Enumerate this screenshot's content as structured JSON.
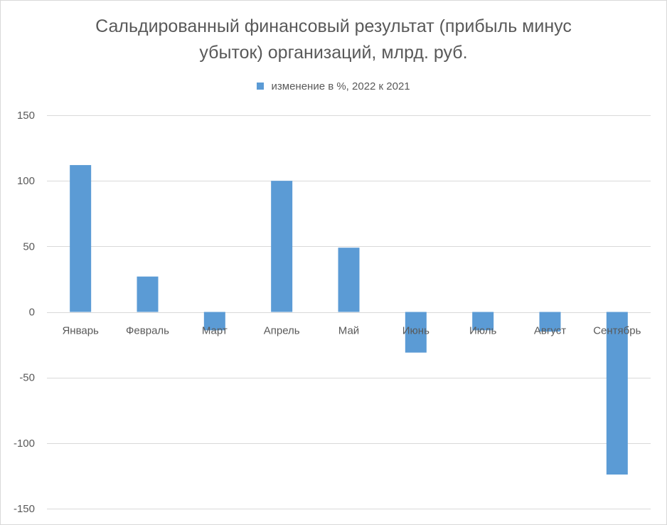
{
  "chart_data": {
    "type": "bar",
    "title_lines": [
      "Сальдированный финансовый результат (прибыль минус",
      "убыток) организаций, млрд. руб."
    ],
    "categories": [
      "Январь",
      "Февраль",
      "Март",
      "Апрель",
      "Май",
      "Июнь",
      "Июль",
      "Август",
      "Сентябрь"
    ],
    "series": [
      {
        "name": "изменение в %, 2022 к 2021",
        "values": [
          112,
          27,
          -14,
          100,
          49,
          -31,
          -14,
          -15,
          -124
        ],
        "color": "#5b9bd5"
      }
    ],
    "ylim": [
      -150,
      150
    ],
    "yticks": [
      150,
      100,
      50,
      0,
      -50,
      -100,
      -150
    ],
    "ytick_labels": [
      "150",
      "100",
      "50",
      "0",
      "-50",
      "-100",
      "-150"
    ],
    "grid": true,
    "legend_position": "top"
  }
}
